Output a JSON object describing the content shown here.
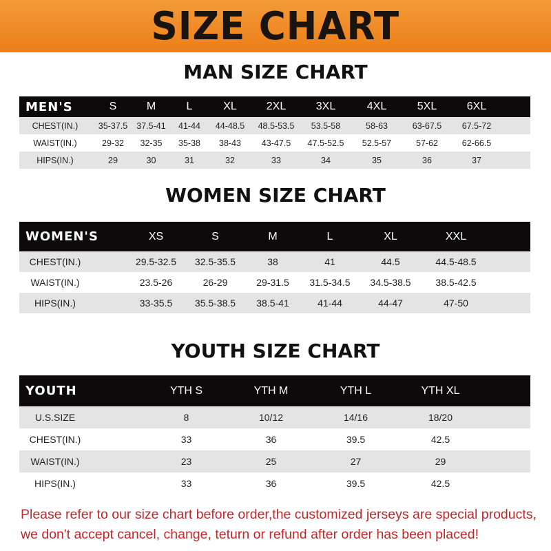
{
  "banner": {
    "title": "SIZE CHART",
    "color": "#ef8a24"
  },
  "men": {
    "title": "MAN SIZE CHART",
    "header": [
      "MEN'S",
      "S",
      "M",
      "L",
      "XL",
      "2XL",
      "3XL",
      "4XL",
      "5XL",
      "6XL"
    ],
    "rows": [
      [
        "CHEST(IN.)",
        "35-37.5",
        "37.5-41",
        "41-44",
        "44-48.5",
        "48.5-53.5",
        "53.5-58",
        "58-63",
        "63-67.5",
        "67.5-72"
      ],
      [
        "WAIST(IN.)",
        "29-32",
        "32-35",
        "35-38",
        "38-43",
        "43-47.5",
        "47.5-52.5",
        "52.5-57",
        "57-62",
        "62-66.5"
      ],
      [
        "HIPS(IN.)",
        "29",
        "30",
        "31",
        "32",
        "33",
        "34",
        "35",
        "36",
        "37"
      ]
    ]
  },
  "women": {
    "title": "WOMEN SIZE CHART",
    "header": [
      "WOMEN'S",
      "XS",
      "S",
      "M",
      "L",
      "XL",
      "XXL"
    ],
    "rows": [
      [
        "CHEST(IN.)",
        "29.5-32.5",
        "32.5-35.5",
        "38",
        "41",
        "44.5",
        "44.5-48.5"
      ],
      [
        "WAIST(IN.)",
        "23.5-26",
        "26-29",
        "29-31.5",
        "31.5-34.5",
        "34.5-38.5",
        "38.5-42.5"
      ],
      [
        "HIPS(IN.)",
        "33-35.5",
        "35.5-38.5",
        "38.5-41",
        "41-44",
        "44-47",
        "47-50"
      ]
    ]
  },
  "youth": {
    "title": "YOUTH SIZE CHART",
    "header": [
      "YOUTH",
      "YTH S",
      "YTH M",
      "YTH L",
      "YTH XL"
    ],
    "rows": [
      [
        "U.S.SIZE",
        "8",
        "10/12",
        "14/16",
        "18/20"
      ],
      [
        "CHEST(IN.)",
        "33",
        "36",
        "39.5",
        "42.5"
      ],
      [
        "WAIST(IN.)",
        "23",
        "25",
        "27",
        "29"
      ],
      [
        "HIPS(IN.)",
        "33",
        "36",
        "39.5",
        "42.5"
      ]
    ]
  },
  "notice": {
    "line1": "Please refer to our size chart before order,the customized jerseys are special products,",
    "line2": "we don't accept cancel, change, teturn or refund after order has been placed!",
    "color": "#c0282a"
  }
}
